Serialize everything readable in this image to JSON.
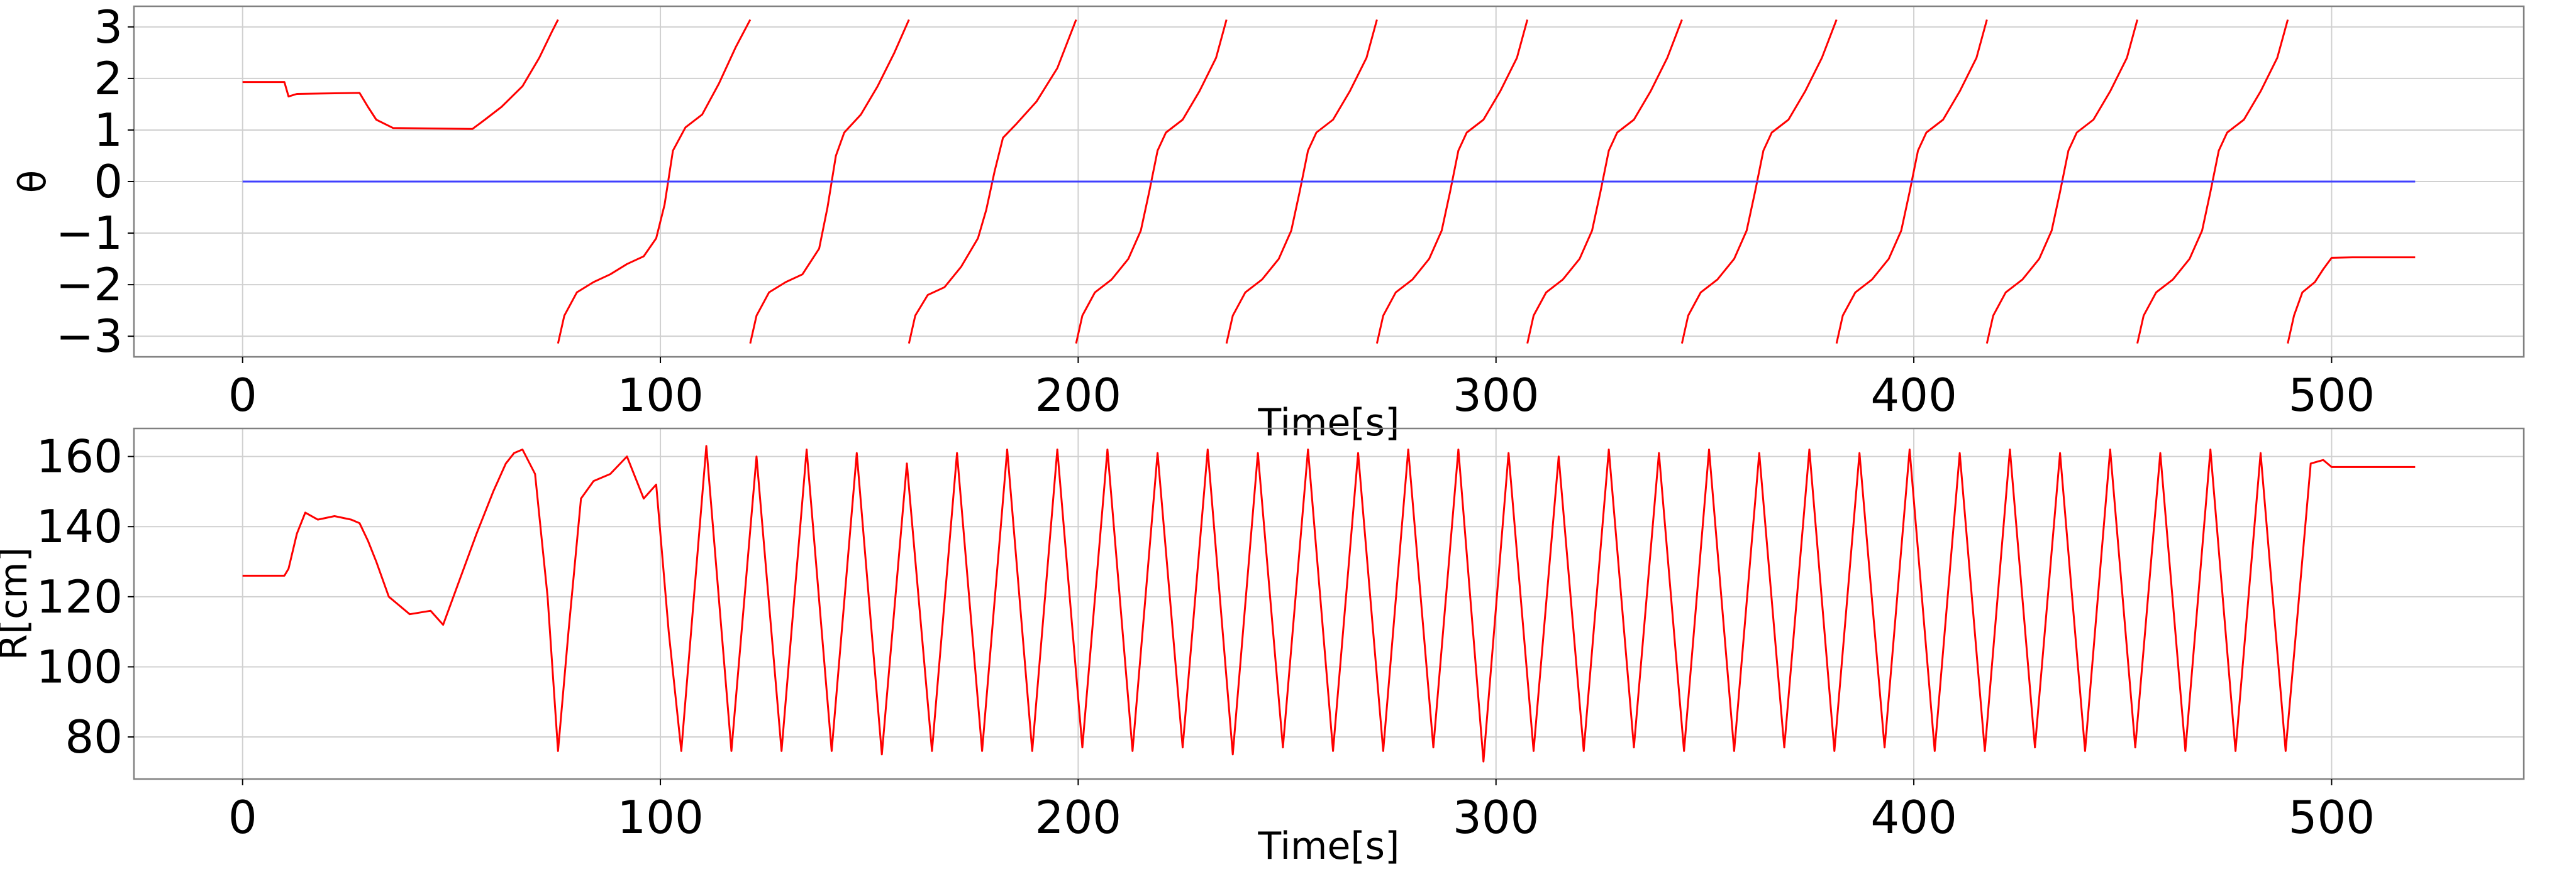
{
  "chart_data": [
    {
      "type": "line",
      "xlabel": "Time[s]",
      "ylabel": "θ",
      "xlim": [
        -26,
        546
      ],
      "ylim": [
        -3.4,
        3.4
      ],
      "xticks": [
        0,
        100,
        200,
        300,
        400,
        500
      ],
      "xtick_labels": [
        "0",
        "100",
        "200",
        "300",
        "400",
        "500"
      ],
      "yticks": [
        3,
        2,
        1,
        0,
        -1,
        -2,
        -3
      ],
      "ytick_labels": [
        "3",
        "2",
        "1",
        "0",
        "−1",
        "−2",
        "−3"
      ],
      "grid": true,
      "series": [
        {
          "color": "#ff0000",
          "segments": [
            [
              [
                0,
                1.93
              ],
              [
                10,
                1.93
              ],
              [
                11,
                1.65
              ],
              [
                13,
                1.7
              ],
              [
                28,
                1.72
              ],
              [
                30,
                1.45
              ],
              [
                32,
                1.2
              ],
              [
                36,
                1.04
              ],
              [
                45,
                1.03
              ],
              [
                55,
                1.02
              ],
              [
                58,
                1.2
              ],
              [
                62,
                1.45
              ],
              [
                67,
                1.85
              ],
              [
                71,
                2.4
              ],
              [
                74,
                2.9
              ],
              [
                75.5,
                3.14
              ]
            ],
            [
              [
                75.5,
                -3.14
              ],
              [
                77,
                -2.6
              ],
              [
                80,
                -2.15
              ],
              [
                84,
                -1.95
              ],
              [
                88,
                -1.8
              ],
              [
                92,
                -1.6
              ],
              [
                96,
                -1.45
              ],
              [
                99,
                -1.1
              ],
              [
                101,
                -0.45
              ],
              [
                103,
                0.6
              ],
              [
                106,
                1.05
              ],
              [
                110,
                1.3
              ],
              [
                114,
                1.9
              ],
              [
                118,
                2.6
              ],
              [
                121.5,
                3.14
              ]
            ],
            [
              [
                121.5,
                -3.14
              ],
              [
                123,
                -2.6
              ],
              [
                126,
                -2.15
              ],
              [
                130,
                -1.95
              ],
              [
                134,
                -1.8
              ],
              [
                138,
                -1.3
              ],
              [
                140,
                -0.5
              ],
              [
                142,
                0.5
              ],
              [
                144,
                0.95
              ],
              [
                148,
                1.3
              ],
              [
                152,
                1.85
              ],
              [
                156,
                2.5
              ],
              [
                159.5,
                3.14
              ]
            ],
            [
              [
                159.5,
                -3.14
              ],
              [
                161,
                -2.6
              ],
              [
                164,
                -2.2
              ],
              [
                168,
                -2.05
              ],
              [
                172,
                -1.65
              ],
              [
                176,
                -1.1
              ],
              [
                178,
                -0.55
              ],
              [
                180,
                0.2
              ],
              [
                182,
                0.85
              ],
              [
                185,
                1.1
              ],
              [
                190,
                1.55
              ],
              [
                195,
                2.2
              ],
              [
                199.5,
                3.14
              ]
            ],
            [
              [
                199.5,
                -3.14
              ],
              [
                201,
                -2.6
              ],
              [
                204,
                -2.15
              ],
              [
                208,
                -1.9
              ],
              [
                212,
                -1.5
              ],
              [
                215,
                -0.95
              ],
              [
                217,
                -0.2
              ],
              [
                219,
                0.6
              ],
              [
                221,
                0.95
              ],
              [
                225,
                1.2
              ],
              [
                229,
                1.75
              ],
              [
                233,
                2.4
              ],
              [
                235.5,
                3.14
              ]
            ],
            [
              [
                235.5,
                -3.14
              ],
              [
                237,
                -2.6
              ],
              [
                240,
                -2.15
              ],
              [
                244,
                -1.9
              ],
              [
                248,
                -1.5
              ],
              [
                251,
                -0.95
              ],
              [
                253,
                -0.2
              ],
              [
                255,
                0.6
              ],
              [
                257,
                0.95
              ],
              [
                261,
                1.2
              ],
              [
                265,
                1.75
              ],
              [
                269,
                2.4
              ],
              [
                271.5,
                3.14
              ]
            ],
            [
              [
                271.5,
                -3.14
              ],
              [
                273,
                -2.6
              ],
              [
                276,
                -2.15
              ],
              [
                280,
                -1.9
              ],
              [
                284,
                -1.5
              ],
              [
                287,
                -0.95
              ],
              [
                289,
                -0.2
              ],
              [
                291,
                0.6
              ],
              [
                293,
                0.95
              ],
              [
                297,
                1.2
              ],
              [
                301,
                1.75
              ],
              [
                305,
                2.4
              ],
              [
                307.5,
                3.14
              ]
            ],
            [
              [
                307.5,
                -3.14
              ],
              [
                309,
                -2.6
              ],
              [
                312,
                -2.15
              ],
              [
                316,
                -1.9
              ],
              [
                320,
                -1.5
              ],
              [
                323,
                -0.95
              ],
              [
                325,
                -0.2
              ],
              [
                327,
                0.6
              ],
              [
                329,
                0.95
              ],
              [
                333,
                1.2
              ],
              [
                337,
                1.75
              ],
              [
                341,
                2.4
              ],
              [
                344.5,
                3.14
              ]
            ],
            [
              [
                344.5,
                -3.14
              ],
              [
                346,
                -2.6
              ],
              [
                349,
                -2.15
              ],
              [
                353,
                -1.9
              ],
              [
                357,
                -1.5
              ],
              [
                360,
                -0.95
              ],
              [
                362,
                -0.2
              ],
              [
                364,
                0.6
              ],
              [
                366,
                0.95
              ],
              [
                370,
                1.2
              ],
              [
                374,
                1.75
              ],
              [
                378,
                2.4
              ],
              [
                381.5,
                3.14
              ]
            ],
            [
              [
                381.5,
                -3.14
              ],
              [
                383,
                -2.6
              ],
              [
                386,
                -2.15
              ],
              [
                390,
                -1.9
              ],
              [
                394,
                -1.5
              ],
              [
                397,
                -0.95
              ],
              [
                399,
                -0.2
              ],
              [
                401,
                0.6
              ],
              [
                403,
                0.95
              ],
              [
                407,
                1.2
              ],
              [
                411,
                1.75
              ],
              [
                415,
                2.4
              ],
              [
                417.5,
                3.14
              ]
            ],
            [
              [
                417.5,
                -3.14
              ],
              [
                419,
                -2.6
              ],
              [
                422,
                -2.15
              ],
              [
                426,
                -1.9
              ],
              [
                430,
                -1.5
              ],
              [
                433,
                -0.95
              ],
              [
                435,
                -0.2
              ],
              [
                437,
                0.6
              ],
              [
                439,
                0.95
              ],
              [
                443,
                1.2
              ],
              [
                447,
                1.75
              ],
              [
                451,
                2.4
              ],
              [
                453.5,
                3.14
              ]
            ],
            [
              [
                453.5,
                -3.14
              ],
              [
                455,
                -2.6
              ],
              [
                458,
                -2.15
              ],
              [
                462,
                -1.9
              ],
              [
                466,
                -1.5
              ],
              [
                469,
                -0.95
              ],
              [
                471,
                -0.2
              ],
              [
                473,
                0.6
              ],
              [
                475,
                0.95
              ],
              [
                479,
                1.2
              ],
              [
                483,
                1.75
              ],
              [
                487,
                2.4
              ],
              [
                489.5,
                3.14
              ]
            ],
            [
              [
                489.5,
                -3.14
              ],
              [
                491,
                -2.6
              ],
              [
                493,
                -2.15
              ],
              [
                496,
                -1.95
              ],
              [
                498,
                -1.7
              ],
              [
                500,
                -1.48
              ],
              [
                505,
                -1.47
              ],
              [
                520,
                -1.47
              ]
            ]
          ]
        },
        {
          "color": "#4040ff",
          "segments": [
            [
              [
                0,
                0
              ],
              [
                520,
                0
              ]
            ]
          ]
        }
      ]
    },
    {
      "type": "line",
      "xlabel": "Time[s]",
      "ylabel": "R[cm]",
      "xlim": [
        -26,
        546
      ],
      "ylim": [
        68,
        168
      ],
      "xticks": [
        0,
        100,
        200,
        300,
        400,
        500
      ],
      "xtick_labels": [
        "0",
        "100",
        "200",
        "300",
        "400",
        "500"
      ],
      "yticks": [
        160,
        140,
        120,
        100,
        80
      ],
      "ytick_labels": [
        "160",
        "140",
        "120",
        "100",
        "80"
      ],
      "grid": true,
      "series": [
        {
          "color": "#ff0000",
          "x": [
            0,
            10,
            11,
            13,
            15,
            18,
            22,
            26,
            28,
            30,
            32,
            35,
            40,
            45,
            48,
            52,
            56,
            60,
            63,
            65,
            67,
            70,
            73,
            75.5,
            78,
            81,
            84,
            88,
            92,
            96,
            99,
            102,
            105,
            111,
            117,
            123,
            129,
            135,
            141,
            147,
            153,
            159,
            165,
            171,
            177,
            183,
            189,
            195,
            201,
            207,
            213,
            219,
            225,
            231,
            237,
            243,
            249,
            255,
            261,
            267,
            273,
            279,
            285,
            291,
            297,
            303,
            309,
            315,
            321,
            327,
            333,
            339,
            345,
            351,
            357,
            363,
            369,
            375,
            381,
            387,
            393,
            399,
            405,
            411,
            417,
            423,
            429,
            435,
            441,
            447,
            453,
            459,
            465,
            471,
            477,
            483,
            489,
            495,
            498,
            500,
            505,
            520
          ],
          "values": [
            126,
            126,
            128,
            138,
            144,
            142,
            143,
            142,
            141,
            136,
            130,
            120,
            115,
            116,
            112,
            125,
            138,
            150,
            158,
            161,
            162,
            155,
            120,
            76,
            110,
            148,
            153,
            155,
            160,
            148,
            152,
            110,
            76,
            163,
            76,
            160,
            76,
            162,
            76,
            161,
            75,
            158,
            76,
            161,
            76,
            162,
            76,
            162,
            77,
            162,
            76,
            161,
            77,
            162,
            75,
            161,
            77,
            162,
            76,
            161,
            76,
            162,
            77,
            162,
            73,
            161,
            76,
            160,
            76,
            162,
            77,
            161,
            76,
            162,
            76,
            161,
            77,
            162,
            76,
            161,
            77,
            162,
            76,
            161,
            76,
            162,
            77,
            161,
            76,
            162,
            77,
            161,
            76,
            162,
            76,
            161,
            76,
            158,
            159,
            157,
            157,
            157
          ]
        }
      ]
    }
  ]
}
